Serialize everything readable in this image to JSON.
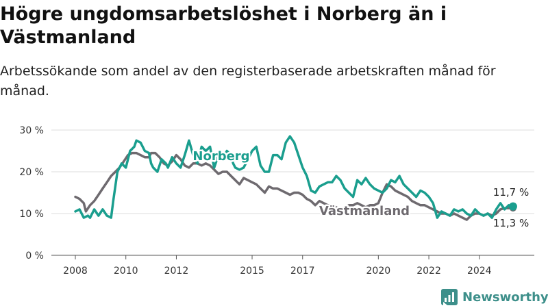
{
  "header": {
    "title": "Högre ungdomsarbetslöshet i Norberg än i Västmanland",
    "subtitle": "Arbetssökande som andel av den registerbaserade arbetskraften månad för månad."
  },
  "branding": {
    "name": "Newsworthy",
    "color": "#3d8f8a"
  },
  "chart_data": {
    "type": "line",
    "x_ticks": [
      "2008",
      "2010",
      "2012",
      "2015",
      "2017",
      "2020",
      "2022",
      "2024"
    ],
    "y_ticks": [
      "0 %",
      "10 %",
      "20 %",
      "30 %"
    ],
    "ylim": [
      0,
      30
    ],
    "x_range": [
      "2008-01",
      "2025-06"
    ],
    "grid": true,
    "series": [
      {
        "name": "Norberg",
        "color": "#1a9e8e",
        "end_label": "11,7 %",
        "points": [
          [
            "2008-01",
            10.5
          ],
          [
            "2008-03",
            11
          ],
          [
            "2008-05",
            9
          ],
          [
            "2008-07",
            9.5
          ],
          [
            "2008-08",
            9
          ],
          [
            "2008-10",
            11
          ],
          [
            "2008-12",
            9.5
          ],
          [
            "2009-02",
            11
          ],
          [
            "2009-04",
            9.5
          ],
          [
            "2009-06",
            9
          ],
          [
            "2009-07",
            13
          ],
          [
            "2009-09",
            20
          ],
          [
            "2009-11",
            22
          ],
          [
            "2010-01",
            21
          ],
          [
            "2010-03",
            25
          ],
          [
            "2010-05",
            26
          ],
          [
            "2010-06",
            27.5
          ],
          [
            "2010-08",
            27
          ],
          [
            "2010-10",
            25
          ],
          [
            "2010-12",
            24.5
          ],
          [
            "2011-01",
            22
          ],
          [
            "2011-02",
            21
          ],
          [
            "2011-04",
            20
          ],
          [
            "2011-06",
            23
          ],
          [
            "2011-08",
            22
          ],
          [
            "2011-09",
            21
          ],
          [
            "2011-11",
            23.5
          ],
          [
            "2012-01",
            22
          ],
          [
            "2012-03",
            21
          ],
          [
            "2012-05",
            24
          ],
          [
            "2012-07",
            27.5
          ],
          [
            "2012-09",
            24
          ],
          [
            "2012-11",
            22
          ],
          [
            "2013-01",
            26
          ],
          [
            "2013-03",
            25
          ],
          [
            "2013-05",
            26
          ],
          [
            "2013-07",
            21
          ],
          [
            "2013-09",
            24
          ],
          [
            "2013-11",
            23
          ],
          [
            "2014-01",
            25
          ],
          [
            "2014-03",
            24
          ],
          [
            "2014-04",
            22
          ],
          [
            "2014-05",
            21
          ],
          [
            "2014-07",
            20.5
          ],
          [
            "2014-09",
            21
          ],
          [
            "2014-11",
            23
          ],
          [
            "2015-01",
            25
          ],
          [
            "2015-03",
            26
          ],
          [
            "2015-05",
            21.5
          ],
          [
            "2015-07",
            20
          ],
          [
            "2015-09",
            20
          ],
          [
            "2015-11",
            24
          ],
          [
            "2016-01",
            24
          ],
          [
            "2016-03",
            23
          ],
          [
            "2016-05",
            27
          ],
          [
            "2016-07",
            28.5
          ],
          [
            "2016-09",
            27
          ],
          [
            "2016-11",
            24
          ],
          [
            "2017-01",
            21
          ],
          [
            "2017-03",
            19
          ],
          [
            "2017-05",
            15.5
          ],
          [
            "2017-07",
            15
          ],
          [
            "2017-09",
            16.5
          ],
          [
            "2017-11",
            17
          ],
          [
            "2018-01",
            17.5
          ],
          [
            "2018-03",
            17.5
          ],
          [
            "2018-05",
            19
          ],
          [
            "2018-07",
            18
          ],
          [
            "2018-09",
            16
          ],
          [
            "2018-11",
            15
          ],
          [
            "2019-01",
            14
          ],
          [
            "2019-03",
            18
          ],
          [
            "2019-05",
            17
          ],
          [
            "2019-07",
            18.5
          ],
          [
            "2019-09",
            17
          ],
          [
            "2019-11",
            16
          ],
          [
            "2020-01",
            15.5
          ],
          [
            "2020-03",
            15
          ],
          [
            "2020-05",
            16
          ],
          [
            "2020-07",
            18
          ],
          [
            "2020-09",
            17.5
          ],
          [
            "2020-11",
            19
          ],
          [
            "2021-01",
            17
          ],
          [
            "2021-03",
            16
          ],
          [
            "2021-05",
            15
          ],
          [
            "2021-07",
            14
          ],
          [
            "2021-09",
            15.5
          ],
          [
            "2021-11",
            15
          ],
          [
            "2022-01",
            14
          ],
          [
            "2022-03",
            12.5
          ],
          [
            "2022-05",
            9
          ],
          [
            "2022-07",
            10.5
          ],
          [
            "2022-09",
            10
          ],
          [
            "2022-11",
            9.5
          ],
          [
            "2023-01",
            11
          ],
          [
            "2023-03",
            10.5
          ],
          [
            "2023-05",
            11
          ],
          [
            "2023-07",
            10
          ],
          [
            "2023-09",
            9.5
          ],
          [
            "2023-11",
            11
          ],
          [
            "2024-01",
            10
          ],
          [
            "2024-03",
            9.5
          ],
          [
            "2024-05",
            10
          ],
          [
            "2024-07",
            9
          ],
          [
            "2024-09",
            11
          ],
          [
            "2024-11",
            12.5
          ],
          [
            "2025-01",
            11
          ],
          [
            "2025-03",
            12
          ],
          [
            "2025-05",
            11.7
          ]
        ]
      },
      {
        "name": "Västmanland",
        "color": "#6e6a6f",
        "end_label": "11,3 %",
        "points": [
          [
            "2008-01",
            14
          ],
          [
            "2008-03",
            13.5
          ],
          [
            "2008-05",
            12.5
          ],
          [
            "2008-06",
            10.5
          ],
          [
            "2008-08",
            12
          ],
          [
            "2008-10",
            13
          ],
          [
            "2008-12",
            14.5
          ],
          [
            "2009-02",
            16
          ],
          [
            "2009-04",
            17.5
          ],
          [
            "2009-06",
            19
          ],
          [
            "2009-08",
            20
          ],
          [
            "2009-10",
            21
          ],
          [
            "2009-12",
            22.5
          ],
          [
            "2010-02",
            24
          ],
          [
            "2010-04",
            24.5
          ],
          [
            "2010-06",
            24.5
          ],
          [
            "2010-08",
            24
          ],
          [
            "2010-10",
            23.5
          ],
          [
            "2010-12",
            23.5
          ],
          [
            "2011-01",
            24.5
          ],
          [
            "2011-03",
            24.5
          ],
          [
            "2011-05",
            23.5
          ],
          [
            "2011-07",
            22
          ],
          [
            "2011-09",
            21.5
          ],
          [
            "2011-11",
            22.5
          ],
          [
            "2012-01",
            24
          ],
          [
            "2012-03",
            23
          ],
          [
            "2012-05",
            21.5
          ],
          [
            "2012-07",
            21
          ],
          [
            "2012-09",
            22
          ],
          [
            "2012-11",
            22
          ],
          [
            "2013-01",
            21.5
          ],
          [
            "2013-03",
            22
          ],
          [
            "2013-05",
            21.5
          ],
          [
            "2013-07",
            20.5
          ],
          [
            "2013-09",
            19.5
          ],
          [
            "2013-11",
            20
          ],
          [
            "2014-01",
            20
          ],
          [
            "2014-03",
            19
          ],
          [
            "2014-05",
            18
          ],
          [
            "2014-07",
            17
          ],
          [
            "2014-09",
            18.5
          ],
          [
            "2014-11",
            18
          ],
          [
            "2015-01",
            17.5
          ],
          [
            "2015-03",
            17
          ],
          [
            "2015-05",
            16
          ],
          [
            "2015-07",
            15
          ],
          [
            "2015-09",
            16.5
          ],
          [
            "2015-11",
            16
          ],
          [
            "2016-01",
            16
          ],
          [
            "2016-03",
            15.5
          ],
          [
            "2016-05",
            15
          ],
          [
            "2016-07",
            14.5
          ],
          [
            "2016-09",
            15
          ],
          [
            "2016-11",
            15
          ],
          [
            "2017-01",
            14.5
          ],
          [
            "2017-03",
            13.5
          ],
          [
            "2017-05",
            13
          ],
          [
            "2017-07",
            12
          ],
          [
            "2017-09",
            13
          ],
          [
            "2017-11",
            12.5
          ],
          [
            "2018-01",
            12
          ],
          [
            "2018-03",
            12
          ],
          [
            "2018-05",
            11.5
          ],
          [
            "2018-07",
            11
          ],
          [
            "2018-09",
            11.5
          ],
          [
            "2018-11",
            12
          ],
          [
            "2019-01",
            12
          ],
          [
            "2019-03",
            12.5
          ],
          [
            "2019-05",
            12
          ],
          [
            "2019-07",
            11.5
          ],
          [
            "2019-09",
            12
          ],
          [
            "2019-11",
            12
          ],
          [
            "2020-01",
            12.5
          ],
          [
            "2020-03",
            15
          ],
          [
            "2020-05",
            17
          ],
          [
            "2020-07",
            16.5
          ],
          [
            "2020-09",
            15.5
          ],
          [
            "2020-11",
            15
          ],
          [
            "2021-01",
            14.5
          ],
          [
            "2021-03",
            14
          ],
          [
            "2021-05",
            13
          ],
          [
            "2021-07",
            12.5
          ],
          [
            "2021-09",
            12
          ],
          [
            "2021-11",
            12
          ],
          [
            "2022-01",
            11.5
          ],
          [
            "2022-03",
            11
          ],
          [
            "2022-05",
            10.5
          ],
          [
            "2022-07",
            10
          ],
          [
            "2022-09",
            10
          ],
          [
            "2022-11",
            9.5
          ],
          [
            "2023-01",
            10
          ],
          [
            "2023-03",
            9.5
          ],
          [
            "2023-05",
            9
          ],
          [
            "2023-07",
            8.5
          ],
          [
            "2023-09",
            9.5
          ],
          [
            "2023-11",
            10
          ],
          [
            "2024-01",
            10
          ],
          [
            "2024-03",
            9.5
          ],
          [
            "2024-05",
            10
          ],
          [
            "2024-07",
            9.5
          ],
          [
            "2024-09",
            10
          ],
          [
            "2024-11",
            11
          ],
          [
            "2025-01",
            11.3
          ],
          [
            "2025-03",
            11.3
          ],
          [
            "2025-05",
            11.3
          ]
        ]
      }
    ]
  }
}
